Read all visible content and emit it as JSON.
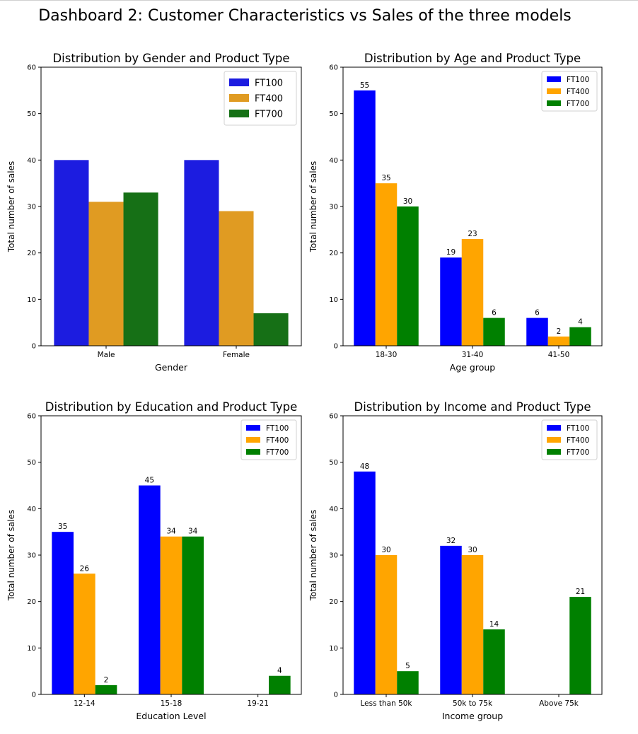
{
  "dashboard": {
    "title": "Dashboard 2: Customer Characteristics vs Sales of the three models"
  },
  "colors": {
    "vivid": [
      "#0000ff",
      "#ffa500",
      "#008000"
    ],
    "muted": [
      "#1c1ce0",
      "#e09b22",
      "#167016"
    ]
  },
  "chart_data": [
    {
      "type": "bar",
      "title": "Distribution by Gender and Product Type",
      "xlabel": "Gender",
      "ylabel": "Total number of sales",
      "ylim": [
        0,
        60
      ],
      "yticks": [
        0,
        10,
        20,
        30,
        40,
        50,
        60
      ],
      "categories": [
        "Male",
        "Female"
      ],
      "series": [
        {
          "name": "FT100",
          "values": [
            40,
            40
          ]
        },
        {
          "name": "FT400",
          "values": [
            31,
            29
          ]
        },
        {
          "name": "FT700",
          "values": [
            33,
            7
          ]
        }
      ],
      "bar_labels": false,
      "palette": "muted",
      "legend": "top-right"
    },
    {
      "type": "bar",
      "title": "Distribution by Age and Product Type",
      "xlabel": "Age group",
      "ylabel": "Total number of sales",
      "ylim": [
        0,
        60
      ],
      "yticks": [
        0,
        10,
        20,
        30,
        40,
        50,
        60
      ],
      "categories": [
        "18-30",
        "31-40",
        "41-50"
      ],
      "series": [
        {
          "name": "FT100",
          "values": [
            55,
            19,
            6
          ]
        },
        {
          "name": "FT400",
          "values": [
            35,
            23,
            2
          ]
        },
        {
          "name": "FT700",
          "values": [
            30,
            6,
            4
          ]
        }
      ],
      "bar_labels": true,
      "palette": "vivid",
      "legend": "top-right"
    },
    {
      "type": "bar",
      "title": "Distribution by Education and Product Type",
      "xlabel": "Education Level",
      "ylabel": "Total number of sales",
      "ylim": [
        0,
        60
      ],
      "yticks": [
        0,
        10,
        20,
        30,
        40,
        50,
        60
      ],
      "categories": [
        "12-14",
        "15-18",
        "19-21"
      ],
      "series": [
        {
          "name": "FT100",
          "values": [
            35,
            45,
            null
          ]
        },
        {
          "name": "FT400",
          "values": [
            26,
            34,
            null
          ]
        },
        {
          "name": "FT700",
          "values": [
            2,
            34,
            4
          ]
        }
      ],
      "bar_labels": true,
      "palette": "vivid",
      "legend": "top-right"
    },
    {
      "type": "bar",
      "title": "Distribution by Income and Product Type",
      "xlabel": "Income group",
      "ylabel": "Total number of sales",
      "ylim": [
        0,
        60
      ],
      "yticks": [
        0,
        10,
        20,
        30,
        40,
        50,
        60
      ],
      "categories": [
        "Less than 50k",
        "50k to 75k",
        "Above 75k"
      ],
      "series": [
        {
          "name": "FT100",
          "values": [
            48,
            32,
            null
          ]
        },
        {
          "name": "FT400",
          "values": [
            30,
            30,
            null
          ]
        },
        {
          "name": "FT700",
          "values": [
            5,
            14,
            21
          ]
        }
      ],
      "bar_labels": true,
      "palette": "vivid",
      "legend": "top-right"
    }
  ]
}
